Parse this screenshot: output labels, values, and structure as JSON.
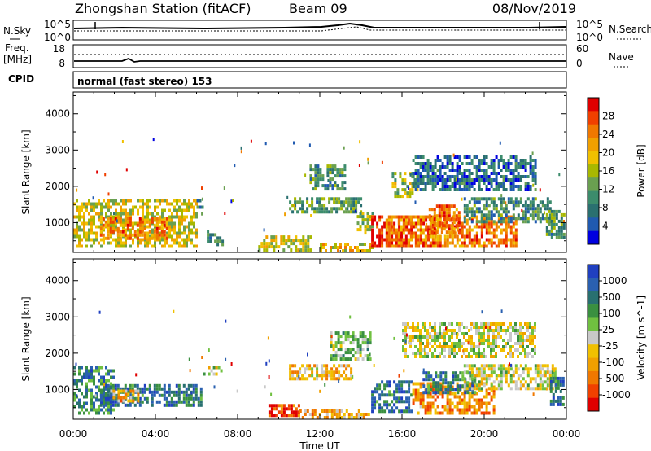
{
  "header": {
    "title": "Zhongshan Station (fitACF)",
    "beam": "Beam 09",
    "date": "08/Nov/2019"
  },
  "top_panels": {
    "nsky_label": "N.Sky",
    "nsky_ticks": [
      "10^5",
      "10^0"
    ],
    "nsearch_label": "N.Search",
    "nsearch_ticks": [
      "10^5",
      "10^0"
    ],
    "freq_label_1": "Freq.",
    "freq_label_2": "[MHz]",
    "freq_ticks": [
      "18",
      "8"
    ],
    "nave_label": "Nave",
    "nave_ticks": [
      "60",
      "0"
    ],
    "cpid_label": "CPID",
    "cpid_text": "normal (fast stereo) 153"
  },
  "chart_data": [
    {
      "type": "heatmap",
      "title": "",
      "xlabel": "Time UT",
      "ylabel": "Slant Range [km]",
      "x_ticks": [
        "00:00",
        "04:00",
        "08:00",
        "12:00",
        "16:00",
        "20:00",
        "00:00"
      ],
      "x_range_hours": [
        0,
        24
      ],
      "y_ticks": [
        1000,
        2000,
        3000,
        4000
      ],
      "y_range_km": [
        180,
        4600
      ],
      "colorbar": {
        "label": "Power [dB]",
        "ticks": [
          "28",
          "24",
          "20",
          "16",
          "12",
          "8",
          "4"
        ],
        "colors": [
          "#e00000",
          "#f04000",
          "#f07800",
          "#f0a000",
          "#f0c000",
          "#a8b800",
          "#6aa050",
          "#3c8c6c",
          "#2a7070",
          "#205ab0",
          "#0000e0"
        ]
      },
      "regions": [
        {
          "t0": 0.0,
          "t1": 6.0,
          "r0": 350,
          "r1": 1650,
          "level": 0.55
        },
        {
          "t0": 1.3,
          "t1": 4.6,
          "r0": 560,
          "r1": 1150,
          "level": 0.75
        },
        {
          "t0": 6.0,
          "t1": 6.3,
          "r0": 1450,
          "r1": 1650,
          "level": 0.3
        },
        {
          "t0": 6.5,
          "t1": 7.3,
          "r0": 400,
          "r1": 800,
          "level": 0.3
        },
        {
          "t0": 9.0,
          "t1": 11.5,
          "r0": 250,
          "r1": 650,
          "level": 0.55
        },
        {
          "t0": 10.5,
          "t1": 14.0,
          "r0": 1300,
          "r1": 1700,
          "level": 0.35
        },
        {
          "t0": 11.5,
          "t1": 13.2,
          "r0": 1900,
          "r1": 2600,
          "level": 0.3
        },
        {
          "t0": 12.0,
          "t1": 14.5,
          "r0": 200,
          "r1": 450,
          "level": 0.6
        },
        {
          "t0": 13.8,
          "t1": 14.6,
          "r0": 700,
          "r1": 1300,
          "level": 0.45
        },
        {
          "t0": 14.5,
          "t1": 17.5,
          "r0": 350,
          "r1": 1200,
          "level": 0.9
        },
        {
          "t0": 15.2,
          "t1": 21.6,
          "r0": 350,
          "r1": 1200,
          "level": 0.75
        },
        {
          "t0": 17.3,
          "t1": 18.8,
          "r0": 700,
          "r1": 1500,
          "level": 0.8
        },
        {
          "t0": 15.5,
          "t1": 16.8,
          "r0": 1700,
          "r1": 2400,
          "level": 0.5
        },
        {
          "t0": 16.5,
          "t1": 22.5,
          "r0": 1950,
          "r1": 2850,
          "level": 0.2
        },
        {
          "t0": 19.0,
          "t1": 23.2,
          "r0": 1000,
          "r1": 1700,
          "level": 0.3
        },
        {
          "t0": 23.0,
          "t1": 23.9,
          "r0": 550,
          "r1": 1350,
          "level": 0.35
        }
      ]
    },
    {
      "type": "heatmap",
      "title": "",
      "xlabel": "Time UT",
      "ylabel": "Slant Range [km]",
      "x_ticks": [
        "00:00",
        "04:00",
        "08:00",
        "12:00",
        "16:00",
        "20:00",
        "00:00"
      ],
      "x_range_hours": [
        0,
        24
      ],
      "y_ticks": [
        1000,
        2000,
        3000,
        4000
      ],
      "y_range_km": [
        180,
        4600
      ],
      "colorbar": {
        "label": "Velocity [m s^-1]",
        "ticks": [
          "1000",
          "500",
          "100",
          "25",
          "-25",
          "-100",
          "-500",
          "-1000"
        ],
        "colors": [
          "#2040c0",
          "#2a60b0",
          "#287070",
          "#3a9040",
          "#70c040",
          "#c8c8c8",
          "#f0c000",
          "#f0a000",
          "#f07800",
          "#f04000",
          "#e00000"
        ]
      },
      "regions": [
        {
          "t0": 0.0,
          "t1": 2.0,
          "r0": 350,
          "r1": 1650,
          "level": 0.75
        },
        {
          "t0": 1.3,
          "t1": 6.2,
          "r0": 550,
          "r1": 1150,
          "level": 0.8
        },
        {
          "t0": 1.8,
          "t1": 3.2,
          "r0": 700,
          "r1": 1000,
          "level": 0.35
        },
        {
          "t0": 6.2,
          "t1": 7.2,
          "r0": 1400,
          "r1": 1650,
          "level": 0.5
        },
        {
          "t0": 9.5,
          "t1": 11.0,
          "r0": 280,
          "r1": 600,
          "level": 0.15
        },
        {
          "t0": 11.0,
          "t1": 14.5,
          "r0": 200,
          "r1": 450,
          "level": 0.35
        },
        {
          "t0": 10.5,
          "t1": 13.5,
          "r0": 1300,
          "r1": 1700,
          "level": 0.4
        },
        {
          "t0": 12.5,
          "t1": 14.5,
          "r0": 1800,
          "r1": 2600,
          "level": 0.6
        },
        {
          "t0": 14.5,
          "t1": 16.5,
          "r0": 400,
          "r1": 1250,
          "level": 0.8
        },
        {
          "t0": 16.5,
          "t1": 20.5,
          "r0": 350,
          "r1": 1200,
          "level": 0.28
        },
        {
          "t0": 17.0,
          "t1": 19.5,
          "r0": 900,
          "r1": 1500,
          "level": 0.78
        },
        {
          "t0": 16.0,
          "t1": 22.5,
          "r0": 1900,
          "r1": 2850,
          "level": 0.5
        },
        {
          "t0": 19.0,
          "t1": 23.5,
          "r0": 1000,
          "r1": 1700,
          "level": 0.48
        },
        {
          "t0": 23.2,
          "t1": 23.9,
          "r0": 550,
          "r1": 1350,
          "level": 0.8
        }
      ]
    }
  ]
}
